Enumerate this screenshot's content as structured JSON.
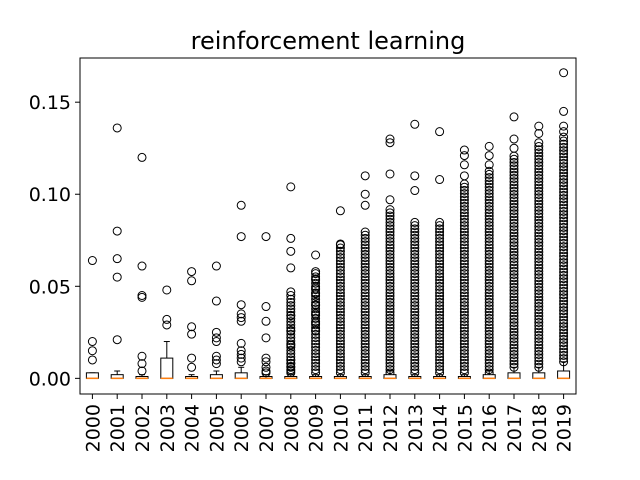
{
  "chart_data": {
    "type": "box",
    "title": "reinforcement learning",
    "xlabel": "",
    "ylabel": "",
    "ylim": [
      -0.0085,
      0.174
    ],
    "yticks": [
      0.0,
      0.05,
      0.1,
      0.15
    ],
    "ytick_labels": [
      "0.00",
      "0.05",
      "0.10",
      "0.15"
    ],
    "categories": [
      "2000",
      "2001",
      "2002",
      "2003",
      "2004",
      "2005",
      "2006",
      "2007",
      "2008",
      "2009",
      "2010",
      "2011",
      "2012",
      "2013",
      "2014",
      "2015",
      "2016",
      "2017",
      "2018",
      "2019"
    ],
    "boxes": [
      {
        "q1": 0.0,
        "median": 0.0,
        "q3": 0.003,
        "whisker_low": 0.0,
        "whisker_high": 0.003,
        "outliers": [
          0.064,
          0.02,
          0.015,
          0.01
        ]
      },
      {
        "q1": 0.0,
        "median": 0.0,
        "q3": 0.002,
        "whisker_low": 0.0,
        "whisker_high": 0.004,
        "outliers": [
          0.136,
          0.08,
          0.065,
          0.055,
          0.021
        ]
      },
      {
        "q1": 0.0,
        "median": 0.0,
        "q3": 0.001,
        "whisker_low": 0.0,
        "whisker_high": 0.002,
        "outliers": [
          0.12,
          0.061,
          0.045,
          0.044,
          0.012,
          0.008,
          0.004
        ]
      },
      {
        "q1": 0.0,
        "median": 0.0,
        "q3": 0.011,
        "whisker_low": 0.0,
        "whisker_high": 0.02,
        "outliers": [
          0.048,
          0.032,
          0.029
        ]
      },
      {
        "q1": 0.0,
        "median": 0.0,
        "q3": 0.001,
        "whisker_low": 0.0,
        "whisker_high": 0.002,
        "outliers": [
          0.058,
          0.053,
          0.028,
          0.024,
          0.011,
          0.006
        ]
      },
      {
        "q1": 0.0,
        "median": 0.0,
        "q3": 0.002,
        "whisker_low": 0.0,
        "whisker_high": 0.004,
        "outliers": [
          0.061,
          0.042,
          0.025,
          0.022,
          0.02,
          0.012,
          0.01,
          0.008
        ]
      },
      {
        "q1": 0.0,
        "median": 0.0,
        "q3": 0.003,
        "whisker_low": 0.0,
        "whisker_high": 0.006,
        "outliers": [
          0.094,
          0.077,
          0.04,
          0.035,
          0.033,
          0.031,
          0.019,
          0.015,
          0.013,
          0.011,
          0.009
        ]
      },
      {
        "q1": 0.0,
        "median": 0.0,
        "q3": 0.001,
        "whisker_low": 0.0,
        "whisker_high": 0.002,
        "outliers": [
          0.077,
          0.039,
          0.031,
          0.022,
          0.011,
          0.009,
          0.006,
          0.004,
          0.003
        ]
      },
      {
        "q1": 0.0,
        "median": 0.0,
        "q3": 0.001,
        "whisker_low": 0.0,
        "whisker_high": 0.002,
        "outliers": [
          0.104,
          0.076,
          0.069,
          0.06,
          0.047,
          0.045,
          0.034,
          0.026,
          0.018,
          0.01,
          0.008,
          0.006,
          0.004
        ]
      },
      {
        "q1": 0.0,
        "median": 0.0,
        "q3": 0.001,
        "whisker_low": 0.0,
        "whisker_high": 0.002,
        "outliers": [
          0.067,
          0.058,
          0.054,
          0.049,
          0.046,
          0.04,
          0.035,
          0.03,
          0.026
        ]
      },
      {
        "q1": 0.0,
        "median": 0.0,
        "q3": 0.001,
        "whisker_low": 0.0,
        "whisker_high": 0.002,
        "outliers": [
          0.091,
          0.073
        ]
      },
      {
        "q1": 0.0,
        "median": 0.0,
        "q3": 0.001,
        "whisker_low": 0.0,
        "whisker_high": 0.002,
        "outliers": [
          0.11,
          0.1,
          0.094
        ]
      },
      {
        "q1": 0.0,
        "median": 0.0,
        "q3": 0.002,
        "whisker_low": 0.0,
        "whisker_high": 0.004,
        "outliers": [
          0.13,
          0.128,
          0.111,
          0.097
        ]
      },
      {
        "q1": 0.0,
        "median": 0.0,
        "q3": 0.001,
        "whisker_low": 0.0,
        "whisker_high": 0.002,
        "outliers": [
          0.138,
          0.11,
          0.102
        ]
      },
      {
        "q1": 0.0,
        "median": 0.0,
        "q3": 0.001,
        "whisker_low": 0.0,
        "whisker_high": 0.002,
        "outliers": [
          0.134,
          0.108
        ]
      },
      {
        "q1": 0.0,
        "median": 0.0,
        "q3": 0.001,
        "whisker_low": 0.0,
        "whisker_high": 0.002,
        "outliers": [
          0.124,
          0.121,
          0.116,
          0.11
        ]
      },
      {
        "q1": 0.0,
        "median": 0.0,
        "q3": 0.002,
        "whisker_low": 0.0,
        "whisker_high": 0.004,
        "outliers": [
          0.126,
          0.121,
          0.116
        ]
      },
      {
        "q1": 0.0,
        "median": 0.0,
        "q3": 0.003,
        "whisker_low": 0.0,
        "whisker_high": 0.006,
        "outliers": [
          0.142,
          0.13,
          0.125
        ]
      },
      {
        "q1": 0.0,
        "median": 0.0,
        "q3": 0.003,
        "whisker_low": 0.0,
        "whisker_high": 0.006,
        "outliers": [
          0.137,
          0.133,
          0.128
        ]
      },
      {
        "q1": 0.0,
        "median": 0.0,
        "q3": 0.004,
        "whisker_low": 0.0,
        "whisker_high": 0.009,
        "outliers": [
          0.166,
          0.145,
          0.137,
          0.134,
          0.131
        ]
      }
    ],
    "dense_outliers": [
      {
        "from": 0.003,
        "to": 0.044
      },
      {
        "from": 0.003,
        "to": 0.058
      },
      {
        "from": 0.003,
        "to": 0.073
      },
      {
        "from": 0.003,
        "to": 0.08
      },
      {
        "from": 0.003,
        "to": 0.092
      },
      {
        "from": 0.003,
        "to": 0.086
      },
      {
        "from": 0.003,
        "to": 0.086
      },
      {
        "from": 0.003,
        "to": 0.106
      },
      {
        "from": 0.003,
        "to": 0.113
      },
      {
        "from": 0.006,
        "to": 0.122
      },
      {
        "from": 0.006,
        "to": 0.127
      },
      {
        "from": 0.009,
        "to": 0.129
      }
    ],
    "dense_outliers_start_index": 8,
    "colors": {
      "median": "#ff7f0e",
      "box": "#000000",
      "outlier": "#000000",
      "background": "#ffffff"
    },
    "grid": false,
    "legend": "none"
  }
}
